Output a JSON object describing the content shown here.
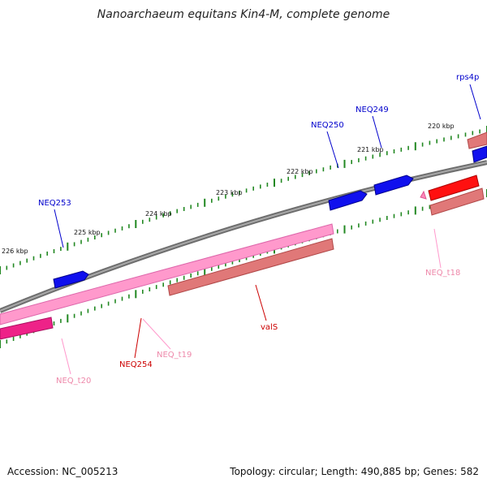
{
  "title": "Nanoarchaeum equitans Kin4-M, complete genome",
  "footer": {
    "accession": "Accession: NC_005213",
    "summary": "Topology: circular; Length: 490,885 bp; Genes: 582"
  },
  "colors": {
    "backbone": "#808080",
    "ticks": "#228822",
    "cds_forward": "#0000ee",
    "label_forward": "#0000cc",
    "cds_reverse": "#e07878",
    "trna_reverse": "#ff88bb",
    "trna_label": "#ee88aa",
    "red_label": "#dd0000"
  },
  "scale_labels": [
    "220 kbp",
    "221 kbp",
    "222 kbp",
    "223 kbp",
    "224 kbp",
    "225 kbp",
    "226 kbp"
  ],
  "gene_labels": {
    "rps4p": "rps4p",
    "neq249": "NEQ249",
    "neq250": "NEQ250",
    "neq253": "NEQ253",
    "neq_t18": "NEQ_t18",
    "vals": "valS",
    "neq_t19": "NEQ_t19",
    "neq254": "NEQ254",
    "neq_t20": "NEQ_t20"
  }
}
